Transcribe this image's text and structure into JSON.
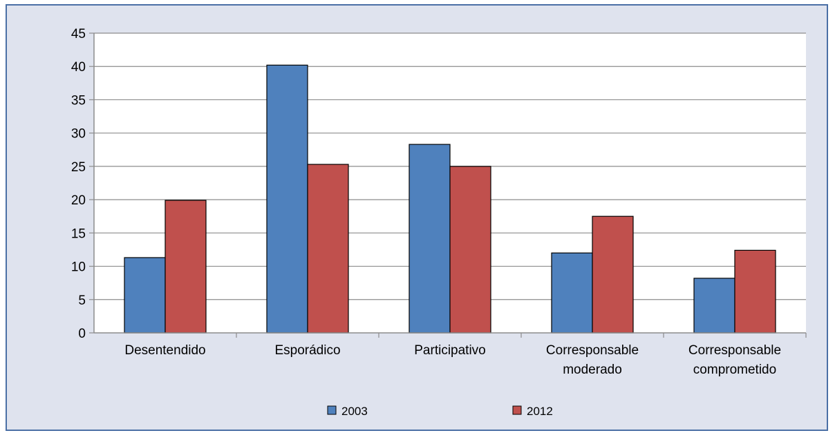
{
  "chart_data": {
    "type": "bar",
    "categories": [
      "Desentendido",
      "Esporádico",
      "Participativo",
      "Corresponsable moderado",
      "Corresponsable comprometido"
    ],
    "series": [
      {
        "name": "2003",
        "values": [
          11.3,
          40.2,
          28.3,
          12.0,
          8.2
        ],
        "color": "#4f81bd"
      },
      {
        "name": "2012",
        "values": [
          19.9,
          25.3,
          25.0,
          17.5,
          12.4
        ],
        "color": "#c0504d"
      }
    ],
    "ylim": [
      0,
      45
    ],
    "yticks": [
      0,
      5,
      10,
      15,
      20,
      25,
      30,
      35,
      40,
      45
    ],
    "grid": true,
    "legend_position": "bottom"
  }
}
